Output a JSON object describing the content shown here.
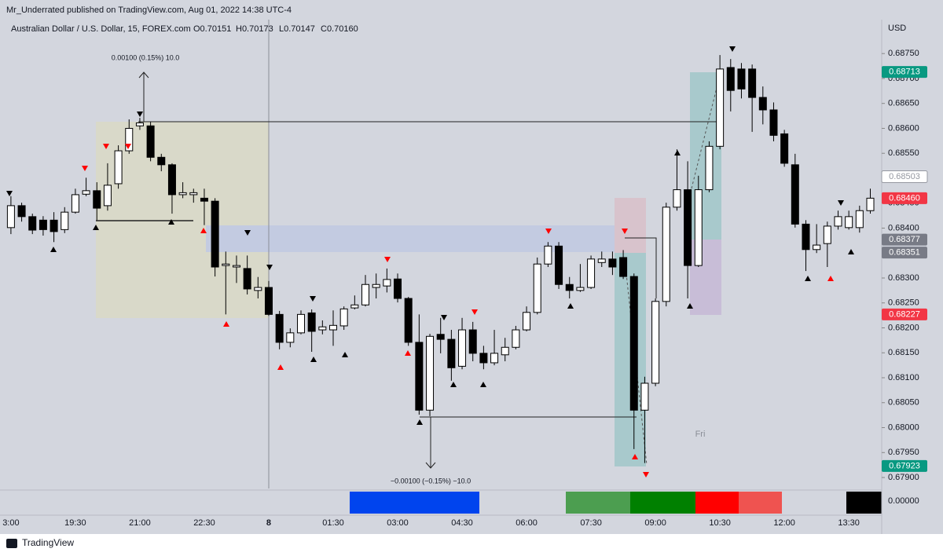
{
  "header": {
    "published": "Mr_Underrated published on TradingView.com, Aug 01, 2022 14:38 UTC-4",
    "symbol": "Australian Dollar / U.S. Dollar, 15, FOREX.com",
    "open": "O0.70151",
    "high": "H0.70173",
    "low": "L0.70147",
    "close": "C0.70160"
  },
  "chart_data": {
    "type": "candlestick",
    "currency": "USD",
    "categories": [
      "3:00",
      null,
      null,
      null,
      null,
      null,
      "19:30",
      null,
      null,
      null,
      null,
      null,
      "21:00",
      null,
      null,
      null,
      null,
      null,
      "22:30",
      null,
      null,
      null,
      null,
      null,
      "8",
      null,
      null,
      null,
      null,
      null,
      "01:30",
      null,
      null,
      null,
      null,
      null,
      "03:00",
      null,
      null,
      null,
      null,
      null,
      "04:30",
      null,
      null,
      null,
      null,
      null,
      "06:00",
      null,
      null,
      null,
      null,
      null,
      "07:30",
      null,
      null,
      null,
      null,
      null,
      "09:00",
      null,
      null,
      null,
      null,
      null,
      "10:30",
      null,
      null,
      null,
      null,
      null,
      "12:00",
      null,
      null,
      null,
      null,
      null,
      "13:30",
      null,
      null
    ],
    "open": [
      0.68401,
      0.68445,
      0.68423,
      0.68416,
      0.68416,
      0.68397,
      0.68432,
      0.68468,
      0.68475,
      0.68445,
      0.68489,
      0.68555,
      0.68605,
      0.68605,
      0.68542,
      0.68527,
      0.68467,
      0.68467,
      0.6846,
      0.68454,
      0.68325,
      0.68322,
      0.68319,
      0.68275,
      0.68281,
      0.68227,
      0.68171,
      0.6819,
      0.6823,
      0.68196,
      0.68196,
      0.68204,
      0.6824,
      0.68246,
      0.68281,
      0.68284,
      0.68298,
      0.68259,
      0.68171,
      0.68035,
      0.68187,
      0.68177,
      0.68123,
      0.68196,
      0.68149,
      0.6813,
      0.68146,
      0.68161,
      0.68196,
      0.68231,
      0.68328,
      0.68364,
      0.68287,
      0.68275,
      0.68281,
      0.68331,
      0.68338,
      0.68341,
      0.68303,
      0.68035,
      0.68089,
      0.68253,
      0.68442,
      0.68477,
      0.68325,
      0.68477,
      0.68564,
      0.68722,
      0.68719,
      0.68719,
      0.68662,
      0.68637,
      0.68589,
      0.68527,
      0.68408,
      0.68357,
      0.68369,
      0.68404,
      0.68401,
      0.68401,
      0.68435
    ],
    "high": [
      0.68464,
      0.68451,
      0.68429,
      0.68424,
      0.68432,
      0.68442,
      0.68479,
      0.68501,
      0.68492,
      0.6853,
      0.68566,
      0.68618,
      0.68621,
      0.68613,
      0.68549,
      0.6853,
      0.68492,
      0.68479,
      0.68479,
      0.6846,
      0.68353,
      0.68345,
      0.68345,
      0.68302,
      0.68294,
      0.68234,
      0.68199,
      0.68235,
      0.68237,
      0.68215,
      0.68235,
      0.68243,
      0.68265,
      0.68306,
      0.68309,
      0.68319,
      0.68309,
      0.68262,
      0.68227,
      0.68188,
      0.6822,
      0.68196,
      0.6822,
      0.68212,
      0.68164,
      0.68196,
      0.6818,
      0.68204,
      0.68243,
      0.68341,
      0.68372,
      0.68372,
      0.68302,
      0.68328,
      0.68345,
      0.68353,
      0.68353,
      0.68356,
      0.68309,
      0.68102,
      0.68259,
      0.68451,
      0.68558,
      0.68534,
      0.68505,
      0.68574,
      0.68747,
      0.68739,
      0.68731,
      0.68728,
      0.68684,
      0.68652,
      0.68597,
      0.68549,
      0.68416,
      0.68408,
      0.68413,
      0.68435,
      0.68435,
      0.68445,
      0.68479
    ],
    "low": [
      0.68388,
      0.68413,
      0.68388,
      0.68385,
      0.68372,
      0.6839,
      0.68429,
      0.68464,
      0.68416,
      0.68435,
      0.68479,
      0.68549,
      0.68597,
      0.68534,
      0.68514,
      0.68429,
      0.6846,
      0.68451,
      0.68406,
      0.68303,
      0.68227,
      0.6829,
      0.68267,
      0.68259,
      0.68224,
      0.68157,
      0.68161,
      0.68187,
      0.68152,
      0.68187,
      0.68164,
      0.68196,
      0.68237,
      0.68243,
      0.68259,
      0.68271,
      0.68251,
      0.68164,
      0.68026,
      0.68023,
      0.68149,
      0.68094,
      0.68117,
      0.68133,
      0.68117,
      0.68125,
      0.68133,
      0.68157,
      0.68193,
      0.68227,
      0.68322,
      0.68278,
      0.68259,
      0.68272,
      0.68278,
      0.68322,
      0.68306,
      0.68298,
      0.67957,
      0.67929,
      0.68083,
      0.68243,
      0.68435,
      0.68259,
      0.68322,
      0.68472,
      0.68558,
      0.68634,
      0.6866,
      0.68593,
      0.68608,
      0.68574,
      0.68523,
      0.68401,
      0.68314,
      0.6835,
      0.68322,
      0.68397,
      0.68397,
      0.68391,
      0.68429
    ],
    "close": [
      0.68445,
      0.68423,
      0.68396,
      0.68397,
      0.68393,
      0.68432,
      0.68467,
      0.68475,
      0.6844,
      0.68486,
      0.68555,
      0.686,
      0.68611,
      0.68542,
      0.68527,
      0.68467,
      0.68471,
      0.68471,
      0.68454,
      0.68322,
      0.68328,
      0.68325,
      0.68278,
      0.68281,
      0.68227,
      0.68171,
      0.6819,
      0.68227,
      0.68193,
      0.68202,
      0.68205,
      0.68238,
      0.68246,
      0.68287,
      0.68287,
      0.68297,
      0.68259,
      0.68171,
      0.68035,
      0.68183,
      0.68177,
      0.6812,
      0.68196,
      0.68149,
      0.6813,
      0.68149,
      0.68161,
      0.68196,
      0.68231,
      0.68328,
      0.68364,
      0.68287,
      0.68275,
      0.68281,
      0.68338,
      0.68338,
      0.68322,
      0.68303,
      0.68035,
      0.68089,
      0.68253,
      0.68442,
      0.68477,
      0.68325,
      0.68477,
      0.68564,
      0.68719,
      0.68676,
      0.68679,
      0.68662,
      0.68637,
      0.68586,
      0.6853,
      0.68408,
      0.68357,
      0.68366,
      0.68404,
      0.68423,
      0.68423,
      0.68435,
      0.6846
    ],
    "up_color": "#ffffff",
    "down_color": "#000000",
    "ylim": [
      0.67878,
      0.68818
    ],
    "yticks": [
      {
        "value": 0.679,
        "label": "0.67900"
      },
      {
        "value": 0.6795,
        "label": "0.67950"
      },
      {
        "value": 0.68,
        "label": "0.68000"
      },
      {
        "value": 0.6805,
        "label": "0.68050"
      },
      {
        "value": 0.681,
        "label": "0.68100"
      },
      {
        "value": 0.6815,
        "label": "0.68150"
      },
      {
        "value": 0.682,
        "label": "0.68200"
      },
      {
        "value": 0.6825,
        "label": "0.68250"
      },
      {
        "value": 0.683,
        "label": "0.68300"
      },
      {
        "value": 0.6835,
        "label": "0.68350"
      },
      {
        "value": 0.684,
        "label": "0.68400"
      },
      {
        "value": 0.6845,
        "label": "0.68450"
      },
      {
        "value": 0.685,
        "label": "0.68500"
      },
      {
        "value": 0.6855,
        "label": "0.68550"
      },
      {
        "value": 0.686,
        "label": "0.68600"
      },
      {
        "value": 0.6865,
        "label": "0.68650"
      },
      {
        "value": 0.687,
        "label": "0.68700"
      },
      {
        "value": 0.6875,
        "label": "0.68750"
      }
    ],
    "price_labels": [
      {
        "value": 0.68713,
        "label": "0.68713",
        "color": "#089981"
      },
      {
        "value": 0.68503,
        "label": "0.68503",
        "color": "#ffffff"
      },
      {
        "value": 0.6846,
        "label": "0.68460",
        "color": "#f23645"
      },
      {
        "value": 0.68377,
        "label": "0.68377",
        "color": "#787b86"
      },
      {
        "value": 0.68351,
        "label": "0.68351",
        "color": "#787b86"
      },
      {
        "value": 0.68227,
        "label": "0.68227",
        "color": "#f23645"
      },
      {
        "value": 0.67923,
        "label": "0.67923",
        "color": "#089981"
      }
    ],
    "annotations": [
      "0.00100 (0.15%) 10.0",
      "−0.00100 (−0.15%) −10.0",
      "Fri"
    ],
    "indicator_label": "0.00000"
  },
  "footer": {
    "brand": "TradingView"
  }
}
